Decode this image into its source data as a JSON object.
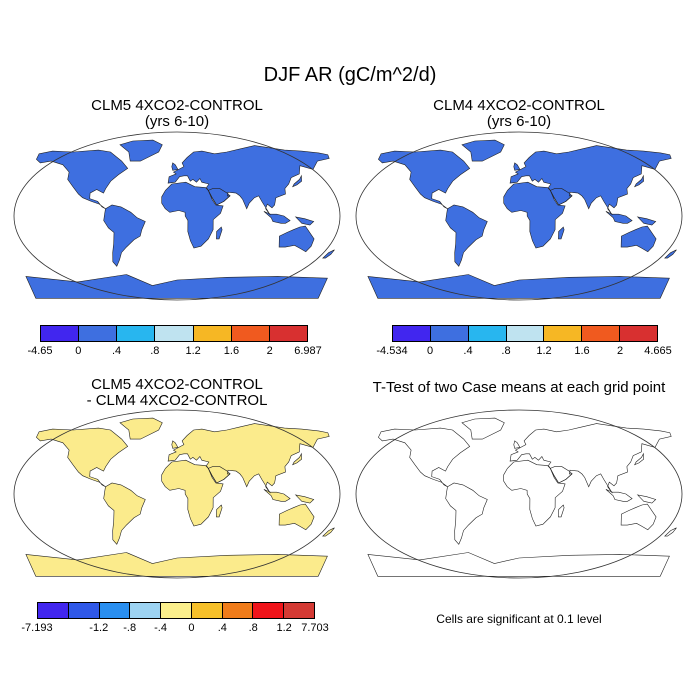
{
  "title": "DJF AR (gC/m^2/d)",
  "panels": [
    {
      "id": "clm5",
      "title_line1": "CLM5 4XCO2-CONTROL",
      "title_line2": "(yrs 6-10)",
      "base_color": "#3e6fe0",
      "colorbar": {
        "colors": [
          "#4126ef",
          "#3e6fe0",
          "#28b6ef",
          "#bfe3f0",
          "#f6b724",
          "#f05a1f",
          "#d83030"
        ],
        "labels": [
          "-4.65",
          "0",
          ".4",
          ".8",
          "1.2",
          "1.6",
          "2",
          "6.987"
        ]
      }
    },
    {
      "id": "clm4",
      "title_line1": "CLM4 4XCO2-CONTROL",
      "title_line2": "(yrs 6-10)",
      "base_color": "#3e6fe0",
      "colorbar": {
        "colors": [
          "#4126ef",
          "#3e6fe0",
          "#28b6ef",
          "#bfe3f0",
          "#f6b724",
          "#f05a1f",
          "#d83030"
        ],
        "labels": [
          "-4.534",
          "0",
          ".4",
          ".8",
          "1.2",
          "1.6",
          "2",
          "4.665"
        ]
      }
    },
    {
      "id": "diff",
      "title_line1": "CLM5 4XCO2-CONTROL",
      "title_line2": "- CLM4 4XCO2-CONTROL",
      "base_color": "#fbeb8c",
      "colorbar": {
        "colors": [
          "#4126ef",
          "#2f58e8",
          "#2a8ff0",
          "#9dd3f2",
          "#fbef8c",
          "#f6c02a",
          "#f07c1a",
          "#f0141a",
          "#d43a34"
        ],
        "labels": [
          "-7.193",
          "",
          "-1.2",
          "-.8",
          "-.4",
          "0",
          ".4",
          ".8",
          "1.2",
          "7.703"
        ]
      }
    },
    {
      "id": "ttest",
      "title_line1": "T-Test of two Case means at each grid point",
      "title_line2": "",
      "base_color": "#ffffff",
      "note": "Cells are significant at 0.1 level"
    }
  ]
}
